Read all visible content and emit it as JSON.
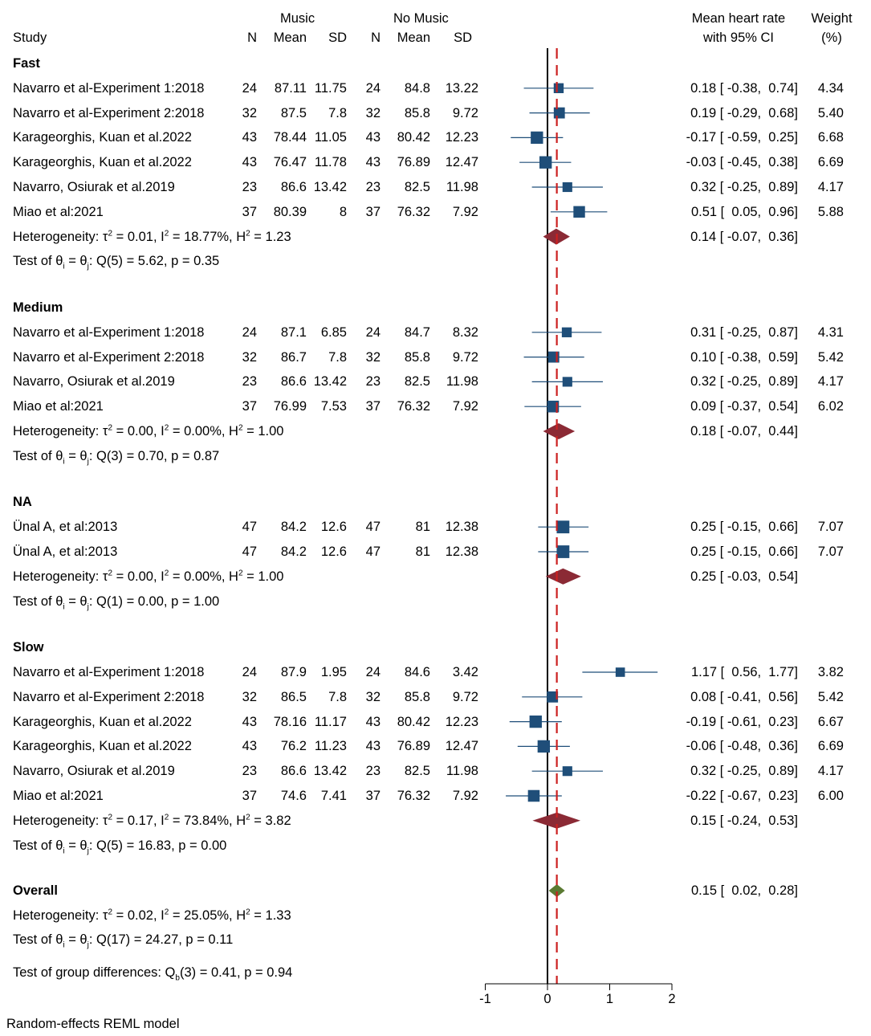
{
  "header": {
    "study": "Study",
    "music_group": "Music",
    "nomusic_group": "No Music",
    "n": "N",
    "mean": "Mean",
    "sd": "SD",
    "effect_line1": "Mean heart rate",
    "effect_line2": "with 95% CI",
    "weight_line1": "Weight",
    "weight_line2": "(%)"
  },
  "chart_data": {
    "type": "forest",
    "title": "",
    "xlabel": "",
    "xlim": [
      -1,
      2
    ],
    "xticks": [
      "-1",
      "0",
      "1",
      "2"
    ],
    "reference_line": 0,
    "overall_effect_line": 0.15,
    "colors": {
      "study_marker": "#1f4e79",
      "subgroup_diamond": "#8b2a35",
      "overall_diamond": "#5a7a32",
      "effect_line": "#cc2020"
    },
    "groups": [
      {
        "name": "Fast",
        "studies": [
          {
            "study": "Navarro et al-Experiment 1:2018",
            "n1": "24",
            "mean1": "87.11",
            "sd1": "11.75",
            "n2": "24",
            "mean2": "84.8",
            "sd2": "13.22",
            "est": 0.18,
            "lo": -0.38,
            "hi": 0.74,
            "ci_text": "0.18 [ -0.38,  0.74]",
            "weight": 4.34,
            "weight_text": "4.34"
          },
          {
            "study": "Navarro et al-Experiment 2:2018",
            "n1": "32",
            "mean1": "87.5",
            "sd1": "7.8",
            "n2": "32",
            "mean2": "85.8",
            "sd2": "9.72",
            "est": 0.19,
            "lo": -0.29,
            "hi": 0.68,
            "ci_text": "0.19 [ -0.29,  0.68]",
            "weight": 5.4,
            "weight_text": "5.40"
          },
          {
            "study": "Karageorghis, Kuan et al.2022",
            "n1": "43",
            "mean1": "78.44",
            "sd1": "11.05",
            "n2": "43",
            "mean2": "80.42",
            "sd2": "12.23",
            "est": -0.17,
            "lo": -0.59,
            "hi": 0.25,
            "ci_text": "-0.17 [ -0.59,  0.25]",
            "weight": 6.68,
            "weight_text": "6.68"
          },
          {
            "study": "Karageorghis, Kuan et al.2022",
            "n1": "43",
            "mean1": "76.47",
            "sd1": "11.78",
            "n2": "43",
            "mean2": "76.89",
            "sd2": "12.47",
            "est": -0.03,
            "lo": -0.45,
            "hi": 0.38,
            "ci_text": "-0.03 [ -0.45,  0.38]",
            "weight": 6.69,
            "weight_text": "6.69"
          },
          {
            "study": "Navarro, Osiurak et al.2019",
            "n1": "23",
            "mean1": "86.6",
            "sd1": "13.42",
            "n2": "23",
            "mean2": "82.5",
            "sd2": "11.98",
            "est": 0.32,
            "lo": -0.25,
            "hi": 0.89,
            "ci_text": "0.32 [ -0.25,  0.89]",
            "weight": 4.17,
            "weight_text": "4.17"
          },
          {
            "study": "Miao et al:2021",
            "n1": "37",
            "mean1": "80.39",
            "sd1": "8",
            "n2": "37",
            "mean2": "76.32",
            "sd2": "7.92",
            "est": 0.51,
            "lo": 0.05,
            "hi": 0.96,
            "ci_text": "0.51 [  0.05,  0.96]",
            "weight": 5.88,
            "weight_text": "5.88"
          }
        ],
        "summary": {
          "tau2": "0.01",
          "i2": "18.77%",
          "h2": "1.23",
          "est": 0.14,
          "lo": -0.07,
          "hi": 0.36,
          "ci_text": "0.14 [ -0.07,  0.36]"
        },
        "test": {
          "q": "Q(5) = 5.62, p = 0.35"
        }
      },
      {
        "name": "Medium",
        "studies": [
          {
            "study": "Navarro et al-Experiment 1:2018",
            "n1": "24",
            "mean1": "87.1",
            "sd1": "6.85",
            "n2": "24",
            "mean2": "84.7",
            "sd2": "8.32",
            "est": 0.31,
            "lo": -0.25,
            "hi": 0.87,
            "ci_text": "0.31 [ -0.25,  0.87]",
            "weight": 4.31,
            "weight_text": "4.31"
          },
          {
            "study": "Navarro et al-Experiment 2:2018",
            "n1": "32",
            "mean1": "86.7",
            "sd1": "7.8",
            "n2": "32",
            "mean2": "85.8",
            "sd2": "9.72",
            "est": 0.1,
            "lo": -0.38,
            "hi": 0.59,
            "ci_text": "0.10 [ -0.38,  0.59]",
            "weight": 5.42,
            "weight_text": "5.42"
          },
          {
            "study": "Navarro, Osiurak et al.2019",
            "n1": "23",
            "mean1": "86.6",
            "sd1": "13.42",
            "n2": "23",
            "mean2": "82.5",
            "sd2": "11.98",
            "est": 0.32,
            "lo": -0.25,
            "hi": 0.89,
            "ci_text": "0.32 [ -0.25,  0.89]",
            "weight": 4.17,
            "weight_text": "4.17"
          },
          {
            "study": "Miao et al:2021",
            "n1": "37",
            "mean1": "76.99",
            "sd1": "7.53",
            "n2": "37",
            "mean2": "76.32",
            "sd2": "7.92",
            "est": 0.09,
            "lo": -0.37,
            "hi": 0.54,
            "ci_text": "0.09 [ -0.37,  0.54]",
            "weight": 6.02,
            "weight_text": "6.02"
          }
        ],
        "summary": {
          "tau2": "0.00",
          "i2": "0.00%",
          "h2": "1.00",
          "est": 0.18,
          "lo": -0.07,
          "hi": 0.44,
          "ci_text": "0.18 [ -0.07,  0.44]"
        },
        "test": {
          "q": "Q(3) = 0.70, p = 0.87"
        }
      },
      {
        "name": "NA",
        "studies": [
          {
            "study": "Ünal A, et al:2013",
            "n1": "47",
            "mean1": "84.2",
            "sd1": "12.6",
            "n2": "47",
            "mean2": "81",
            "sd2": "12.38",
            "est": 0.25,
            "lo": -0.15,
            "hi": 0.66,
            "ci_text": "0.25 [ -0.15,  0.66]",
            "weight": 7.07,
            "weight_text": "7.07"
          },
          {
            "study": "Ünal A, et al:2013",
            "n1": "47",
            "mean1": "84.2",
            "sd1": "12.6",
            "n2": "47",
            "mean2": "81",
            "sd2": "12.38",
            "est": 0.25,
            "lo": -0.15,
            "hi": 0.66,
            "ci_text": "0.25 [ -0.15,  0.66]",
            "weight": 7.07,
            "weight_text": "7.07"
          }
        ],
        "summary": {
          "tau2": "0.00",
          "i2": "0.00%",
          "h2": "1.00",
          "est": 0.25,
          "lo": -0.03,
          "hi": 0.54,
          "ci_text": "0.25 [ -0.03,  0.54]"
        },
        "test": {
          "q": "Q(1) = 0.00, p = 1.00"
        }
      },
      {
        "name": "Slow",
        "studies": [
          {
            "study": "Navarro et al-Experiment 1:2018",
            "n1": "24",
            "mean1": "87.9",
            "sd1": "1.95",
            "n2": "24",
            "mean2": "84.6",
            "sd2": "3.42",
            "est": 1.17,
            "lo": 0.56,
            "hi": 1.77,
            "ci_text": "1.17 [  0.56,  1.77]",
            "weight": 3.82,
            "weight_text": "3.82"
          },
          {
            "study": "Navarro et al-Experiment 2:2018",
            "n1": "32",
            "mean1": "86.5",
            "sd1": "7.8",
            "n2": "32",
            "mean2": "85.8",
            "sd2": "9.72",
            "est": 0.08,
            "lo": -0.41,
            "hi": 0.56,
            "ci_text": "0.08 [ -0.41,  0.56]",
            "weight": 5.42,
            "weight_text": "5.42"
          },
          {
            "study": "Karageorghis, Kuan et al.2022",
            "n1": "43",
            "mean1": "78.16",
            "sd1": "11.17",
            "n2": "43",
            "mean2": "80.42",
            "sd2": "12.23",
            "est": -0.19,
            "lo": -0.61,
            "hi": 0.23,
            "ci_text": "-0.19 [ -0.61,  0.23]",
            "weight": 6.67,
            "weight_text": "6.67"
          },
          {
            "study": "Karageorghis, Kuan et al.2022",
            "n1": "43",
            "mean1": "76.2",
            "sd1": "11.23",
            "n2": "43",
            "mean2": "76.89",
            "sd2": "12.47",
            "est": -0.06,
            "lo": -0.48,
            "hi": 0.36,
            "ci_text": "-0.06 [ -0.48,  0.36]",
            "weight": 6.69,
            "weight_text": "6.69"
          },
          {
            "study": "Navarro, Osiurak et al.2019",
            "n1": "23",
            "mean1": "86.6",
            "sd1": "13.42",
            "n2": "23",
            "mean2": "82.5",
            "sd2": "11.98",
            "est": 0.32,
            "lo": -0.25,
            "hi": 0.89,
            "ci_text": "0.32 [ -0.25,  0.89]",
            "weight": 4.17,
            "weight_text": "4.17"
          },
          {
            "study": "Miao et al:2021",
            "n1": "37",
            "mean1": "74.6",
            "sd1": "7.41",
            "n2": "37",
            "mean2": "76.32",
            "sd2": "7.92",
            "est": -0.22,
            "lo": -0.67,
            "hi": 0.23,
            "ci_text": "-0.22 [ -0.67,  0.23]",
            "weight": 6.0,
            "weight_text": "6.00"
          }
        ],
        "summary": {
          "tau2": "0.17",
          "i2": "73.84%",
          "h2": "3.82",
          "est": 0.15,
          "lo": -0.24,
          "hi": 0.53,
          "ci_text": "0.15 [ -0.24,  0.53]"
        },
        "test": {
          "q": "Q(5) = 16.83, p = 0.00"
        }
      }
    ],
    "overall": {
      "name": "Overall",
      "tau2": "0.02",
      "i2": "25.05%",
      "h2": "1.33",
      "est": 0.15,
      "lo": 0.02,
      "hi": 0.28,
      "ci_text": "0.15 [  0.02,  0.28]",
      "test": {
        "q": "Q(17) = 24.27, p = 0.11"
      }
    },
    "group_differences": {
      "label": "Test of group differences: ",
      "stat": " = 0.41, p = 0.94"
    },
    "labels": {
      "heterogeneity": "Heterogeneity: ",
      "test_of": "Test of ",
      "theta": "θ",
      "equals": " = ",
      "sub_i": "i",
      "sub_j": "j",
      "sub_b": "b",
      "tau": "τ",
      "sq": "2",
      "I": "I",
      "H": "H",
      "Q": "Q",
      "sep": ", ",
      "colon": ": "
    }
  },
  "footer": {
    "model_note": "Random-effects REML model"
  }
}
